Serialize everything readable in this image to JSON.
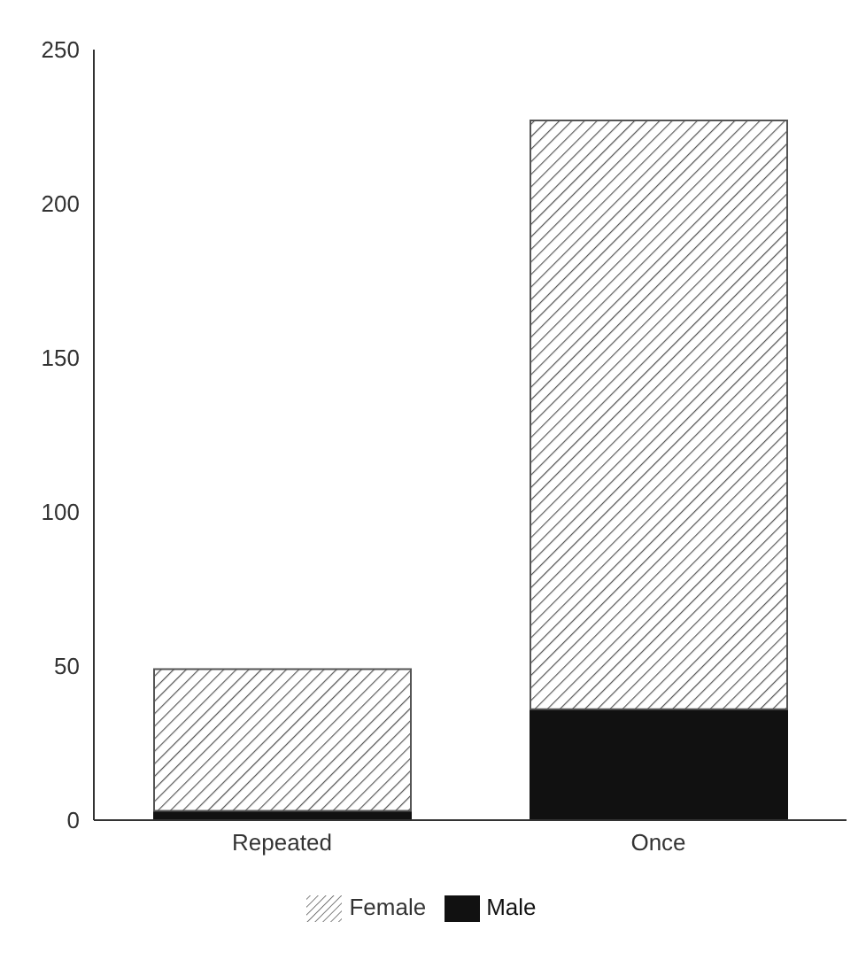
{
  "chart_data": {
    "type": "bar",
    "stacked": true,
    "categories": [
      "Repeated",
      "Once"
    ],
    "series": [
      {
        "name": "Male",
        "color": "#111111",
        "values": [
          3,
          36
        ]
      },
      {
        "name": "Female",
        "color": "#555555",
        "values": [
          46,
          191
        ]
      }
    ],
    "ylim": [
      0,
      250
    ],
    "yticks": [
      0,
      50,
      100,
      150,
      200,
      250
    ],
    "grid": false,
    "legend": "bottom"
  }
}
